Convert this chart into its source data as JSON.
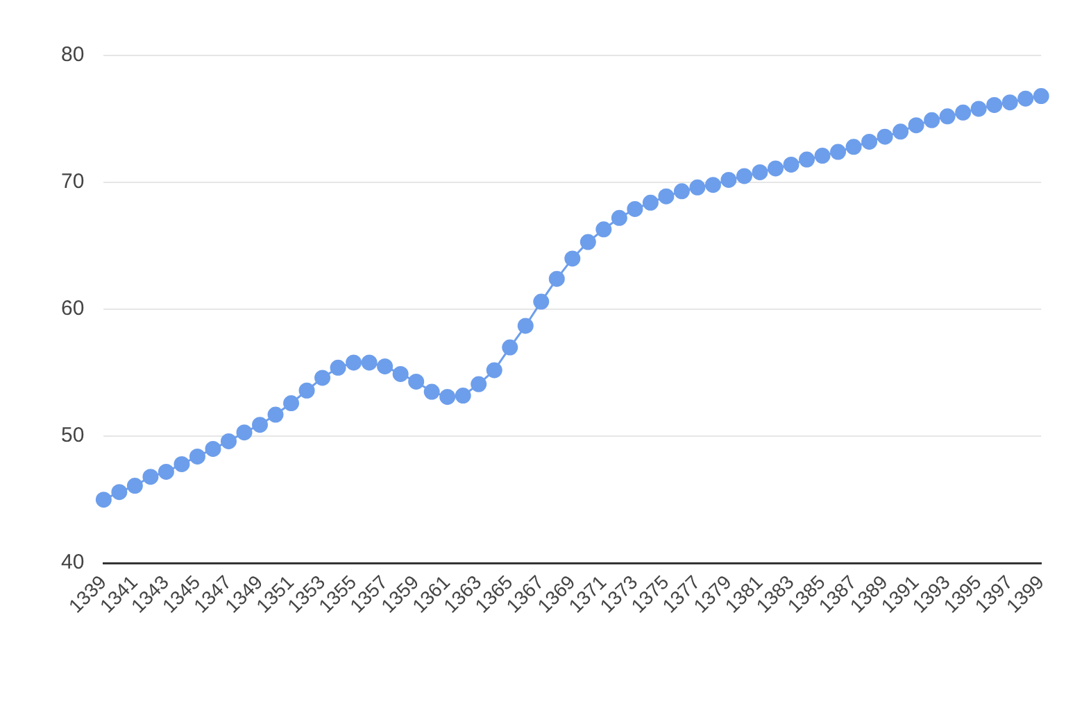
{
  "chart_data": {
    "type": "line",
    "categories": [
      "1339",
      null,
      "1341",
      null,
      "1343",
      null,
      "1345",
      null,
      "1347",
      null,
      "1349",
      null,
      "1351",
      null,
      "1353",
      null,
      "1355",
      null,
      "1357",
      null,
      "1359",
      null,
      "1361",
      null,
      "1363",
      null,
      "1365",
      null,
      "1367",
      null,
      "1369",
      null,
      "1371",
      null,
      "1373",
      null,
      "1375",
      null,
      "1377",
      null,
      "1379",
      null,
      "1381",
      null,
      "1383",
      null,
      "1385",
      null,
      "1387",
      null,
      "1389",
      null,
      "1391",
      null,
      "1393",
      null,
      "1395",
      null,
      "1397",
      null,
      "1399"
    ],
    "series": [
      {
        "color": "#6d9eeb",
        "values": [
          45.0,
          45.6,
          46.1,
          46.8,
          47.2,
          47.8,
          48.4,
          49.0,
          49.6,
          50.3,
          50.9,
          51.7,
          52.6,
          53.6,
          54.6,
          55.4,
          55.8,
          55.8,
          55.5,
          54.9,
          54.3,
          53.5,
          53.1,
          53.2,
          54.1,
          55.2,
          57.0,
          58.7,
          60.6,
          62.4,
          64.0,
          65.3,
          66.3,
          67.2,
          67.9,
          68.4,
          68.9,
          69.3,
          69.6,
          69.8,
          70.2,
          70.5,
          70.8,
          71.1,
          71.4,
          71.8,
          72.1,
          72.4,
          72.8,
          73.2,
          73.6,
          74.0,
          74.5,
          74.9,
          75.2,
          75.5,
          75.8,
          76.1,
          76.3,
          76.6,
          76.8
        ]
      }
    ],
    "ylim": [
      40,
      80
    ],
    "yticks": [
      40,
      50,
      60,
      70,
      80
    ],
    "grid": "y",
    "legend": false,
    "marker": "circle",
    "line_style": "solid"
  }
}
